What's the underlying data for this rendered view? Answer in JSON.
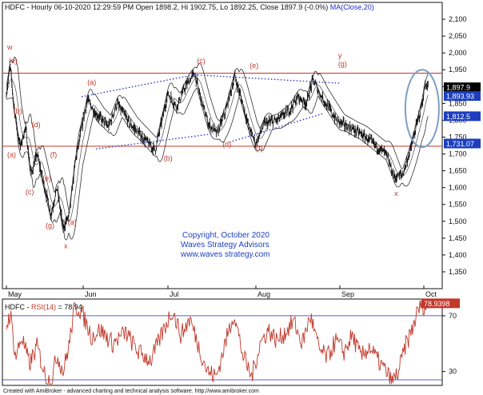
{
  "header": {
    "symbol": "HDFC",
    "info": " - Hourly 06-10-2020 12:29:59 PM Open 1898.2, Hi 1902.75, Lo 1892.25, Close 1897.9 (-0.0%)",
    "ma_label": " MA(Close,20)"
  },
  "rsi_header": {
    "prefix": "HDFC - ",
    "label": "RSI(14)",
    "value": " = 78.94"
  },
  "copyright": {
    "line1": "Copyright, October 2020",
    "line2": "Waves Strategy Advisors",
    "line3": "www.waves strategy.com"
  },
  "footer": "Created with AmiBroker - advanced charting and technical analysis software. http://www.amibroker.com",
  "colors": {
    "price": "#111111",
    "bands": "#333333",
    "channel": "#c0392b",
    "trendline": "#1d2fbf",
    "rsi": "#c0392b",
    "ellipse": "#7f9fc4",
    "tag_bg": "#1d3fbf",
    "tag_dark": "#000000"
  },
  "chart_data": [
    {
      "type": "line",
      "title": "",
      "x_labels": [
        "May",
        "Jun",
        "Jul",
        "Aug",
        "Sep",
        "Oct"
      ],
      "ylim": [
        1300,
        2150
      ],
      "y_ticks": [
        1350,
        1400,
        1450,
        1500,
        1550,
        1600,
        1650,
        1700,
        1750,
        1800,
        1850,
        1900,
        1950,
        2000,
        2050,
        2100
      ],
      "grid": false,
      "horizontal_lines": [
        1940,
        1723
      ],
      "price_path": [
        {
          "m": 0.0,
          "v": 1880
        },
        {
          "m": 0.05,
          "v": 1960
        },
        {
          "m": 0.1,
          "v": 1840
        },
        {
          "m": 0.18,
          "v": 1720
        },
        {
          "m": 0.25,
          "v": 1780
        },
        {
          "m": 0.32,
          "v": 1640
        },
        {
          "m": 0.4,
          "v": 1700
        },
        {
          "m": 0.5,
          "v": 1600
        },
        {
          "m": 0.58,
          "v": 1520
        },
        {
          "m": 0.66,
          "v": 1600
        },
        {
          "m": 0.74,
          "v": 1480
        },
        {
          "m": 0.82,
          "v": 1520
        },
        {
          "m": 0.9,
          "v": 1680
        },
        {
          "m": 0.96,
          "v": 1750
        },
        {
          "m": 1.05,
          "v": 1860
        },
        {
          "m": 1.15,
          "v": 1820
        },
        {
          "m": 1.3,
          "v": 1780
        },
        {
          "m": 1.4,
          "v": 1850
        },
        {
          "m": 1.55,
          "v": 1790
        },
        {
          "m": 1.7,
          "v": 1750
        },
        {
          "m": 1.85,
          "v": 1710
        },
        {
          "m": 2.0,
          "v": 1880
        },
        {
          "m": 2.1,
          "v": 1840
        },
        {
          "m": 2.2,
          "v": 1900
        },
        {
          "m": 2.3,
          "v": 1940
        },
        {
          "m": 2.38,
          "v": 1860
        },
        {
          "m": 2.46,
          "v": 1790
        },
        {
          "m": 2.56,
          "v": 1760
        },
        {
          "m": 2.66,
          "v": 1830
        },
        {
          "m": 2.76,
          "v": 1930
        },
        {
          "m": 2.84,
          "v": 1860
        },
        {
          "m": 2.92,
          "v": 1780
        },
        {
          "m": 3.0,
          "v": 1730
        },
        {
          "m": 3.1,
          "v": 1790
        },
        {
          "m": 3.25,
          "v": 1800
        },
        {
          "m": 3.4,
          "v": 1830
        },
        {
          "m": 3.5,
          "v": 1870
        },
        {
          "m": 3.6,
          "v": 1850
        },
        {
          "m": 3.68,
          "v": 1920
        },
        {
          "m": 3.76,
          "v": 1880
        },
        {
          "m": 3.86,
          "v": 1840
        },
        {
          "m": 3.96,
          "v": 1800
        },
        {
          "m": 4.1,
          "v": 1780
        },
        {
          "m": 4.25,
          "v": 1760
        },
        {
          "m": 4.4,
          "v": 1730
        },
        {
          "m": 4.55,
          "v": 1700
        },
        {
          "m": 4.65,
          "v": 1630
        },
        {
          "m": 4.75,
          "v": 1640
        },
        {
          "m": 4.85,
          "v": 1720
        },
        {
          "m": 4.93,
          "v": 1800
        },
        {
          "m": 4.98,
          "v": 1850
        },
        {
          "m": 5.02,
          "v": 1910
        },
        {
          "m": 5.05,
          "v": 1898
        }
      ],
      "trendlines": [
        {
          "from": {
            "m": 0.98,
            "v": 1870
          },
          "to": {
            "m": 2.3,
            "v": 1935
          }
        },
        {
          "from": {
            "m": 2.3,
            "v": 1935
          },
          "to": {
            "m": 4.0,
            "v": 1910
          }
        },
        {
          "from": {
            "m": 1.15,
            "v": 1715
          },
          "to": {
            "m": 2.52,
            "v": 1760
          }
        },
        {
          "from": {
            "m": 2.7,
            "v": 1735
          },
          "to": {
            "m": 3.8,
            "v": 1820
          }
        }
      ],
      "annotations": [
        {
          "text": "w",
          "m": 0.01,
          "v": 2010
        },
        {
          "text": "(e)",
          "m": 0.03,
          "v": 1970
        },
        {
          "text": "(a)",
          "m": 0.01,
          "v": 1690
        },
        {
          "text": "(b)",
          "m": 0.09,
          "v": 1820
        },
        {
          "text": "(d)",
          "m": 0.33,
          "v": 1780
        },
        {
          "text": "(f)",
          "m": 0.57,
          "v": 1690
        },
        {
          "text": "(c)",
          "m": 0.25,
          "v": 1580
        },
        {
          "text": "(e)",
          "m": 0.47,
          "v": 1620
        },
        {
          "text": "(g)",
          "m": 0.51,
          "v": 1480
        },
        {
          "text": "(a)",
          "m": 0.8,
          "v": 1490
        },
        {
          "text": "x",
          "m": 0.75,
          "v": 1420
        },
        {
          "text": "(a)",
          "m": 1.05,
          "v": 1905
        },
        {
          "text": "(b)",
          "m": 1.95,
          "v": 1680
        },
        {
          "text": "(c)",
          "m": 2.33,
          "v": 1970
        },
        {
          "text": "(d)",
          "m": 2.62,
          "v": 1722
        },
        {
          "text": "(e)",
          "m": 2.93,
          "v": 1955
        },
        {
          "text": "(f)",
          "m": 3.0,
          "v": 1710
        },
        {
          "text": "y",
          "m": 3.98,
          "v": 1985
        },
        {
          "text": "(g)",
          "m": 3.98,
          "v": 1960
        },
        {
          "text": "x",
          "m": 4.65,
          "v": 1575
        }
      ],
      "value_tags": [
        {
          "text": "1,897.9",
          "v": 1898,
          "style": "dark"
        },
        {
          "text": "1,893.93",
          "v": 1872,
          "style": "blue"
        },
        {
          "text": "1,812.5",
          "v": 1812,
          "style": "blue"
        },
        {
          "text": "1,731.07",
          "v": 1731,
          "style": "blue"
        }
      ],
      "ellipse": {
        "m_center": 4.98,
        "v_center": 1835,
        "m_radius": 0.2,
        "v_radius": 115
      }
    },
    {
      "type": "line",
      "title": "",
      "ylim": [
        20,
        82
      ],
      "y_ticks": [
        30,
        70
      ],
      "grid": false,
      "horizontal_lines": [
        70,
        24
      ],
      "last_value": 78.94,
      "value_tag": "78.9398",
      "rsi_path": [
        {
          "m": 0.0,
          "v": 62
        },
        {
          "m": 0.05,
          "v": 72
        },
        {
          "m": 0.12,
          "v": 40
        },
        {
          "m": 0.2,
          "v": 55
        },
        {
          "m": 0.3,
          "v": 35
        },
        {
          "m": 0.4,
          "v": 48
        },
        {
          "m": 0.5,
          "v": 28
        },
        {
          "m": 0.58,
          "v": 22
        },
        {
          "m": 0.66,
          "v": 42
        },
        {
          "m": 0.74,
          "v": 30
        },
        {
          "m": 0.82,
          "v": 50
        },
        {
          "m": 0.88,
          "v": 74
        },
        {
          "m": 0.94,
          "v": 76
        },
        {
          "m": 1.0,
          "v": 70
        },
        {
          "m": 1.1,
          "v": 55
        },
        {
          "m": 1.2,
          "v": 60
        },
        {
          "m": 1.35,
          "v": 50
        },
        {
          "m": 1.5,
          "v": 58
        },
        {
          "m": 1.65,
          "v": 44
        },
        {
          "m": 1.8,
          "v": 38
        },
        {
          "m": 1.95,
          "v": 60
        },
        {
          "m": 2.05,
          "v": 74
        },
        {
          "m": 2.15,
          "v": 56
        },
        {
          "m": 2.25,
          "v": 68
        },
        {
          "m": 2.35,
          "v": 48
        },
        {
          "m": 2.45,
          "v": 30
        },
        {
          "m": 2.55,
          "v": 26
        },
        {
          "m": 2.65,
          "v": 50
        },
        {
          "m": 2.75,
          "v": 72
        },
        {
          "m": 2.85,
          "v": 42
        },
        {
          "m": 2.95,
          "v": 26
        },
        {
          "m": 3.05,
          "v": 50
        },
        {
          "m": 3.15,
          "v": 60
        },
        {
          "m": 3.25,
          "v": 52
        },
        {
          "m": 3.35,
          "v": 58
        },
        {
          "m": 3.45,
          "v": 66
        },
        {
          "m": 3.55,
          "v": 50
        },
        {
          "m": 3.65,
          "v": 70
        },
        {
          "m": 3.75,
          "v": 46
        },
        {
          "m": 3.85,
          "v": 40
        },
        {
          "m": 3.95,
          "v": 52
        },
        {
          "m": 4.05,
          "v": 44
        },
        {
          "m": 4.15,
          "v": 56
        },
        {
          "m": 4.25,
          "v": 40
        },
        {
          "m": 4.35,
          "v": 48
        },
        {
          "m": 4.45,
          "v": 38
        },
        {
          "m": 4.55,
          "v": 30
        },
        {
          "m": 4.62,
          "v": 22
        },
        {
          "m": 4.7,
          "v": 30
        },
        {
          "m": 4.78,
          "v": 48
        },
        {
          "m": 4.86,
          "v": 60
        },
        {
          "m": 4.92,
          "v": 72
        },
        {
          "m": 4.97,
          "v": 79
        },
        {
          "m": 5.02,
          "v": 76
        },
        {
          "m": 5.05,
          "v": 79
        }
      ]
    }
  ]
}
